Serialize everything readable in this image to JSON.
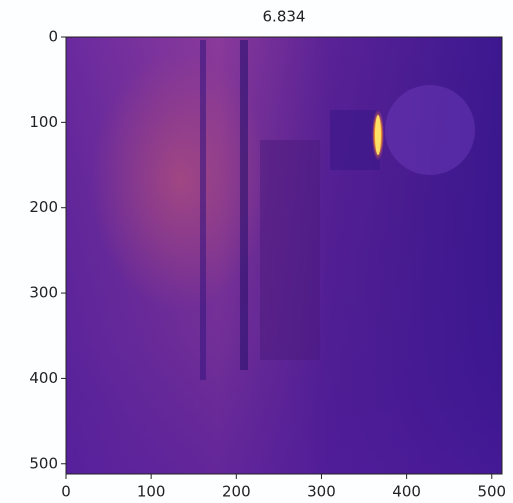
{
  "chart_data": {
    "type": "image",
    "title": "6.834",
    "xlim": [
      0,
      512
    ],
    "ylim": [
      512,
      0
    ],
    "xticks": [
      0,
      100,
      200,
      300,
      400,
      500
    ],
    "yticks": [
      0,
      100,
      200,
      300,
      400,
      500
    ]
  }
}
